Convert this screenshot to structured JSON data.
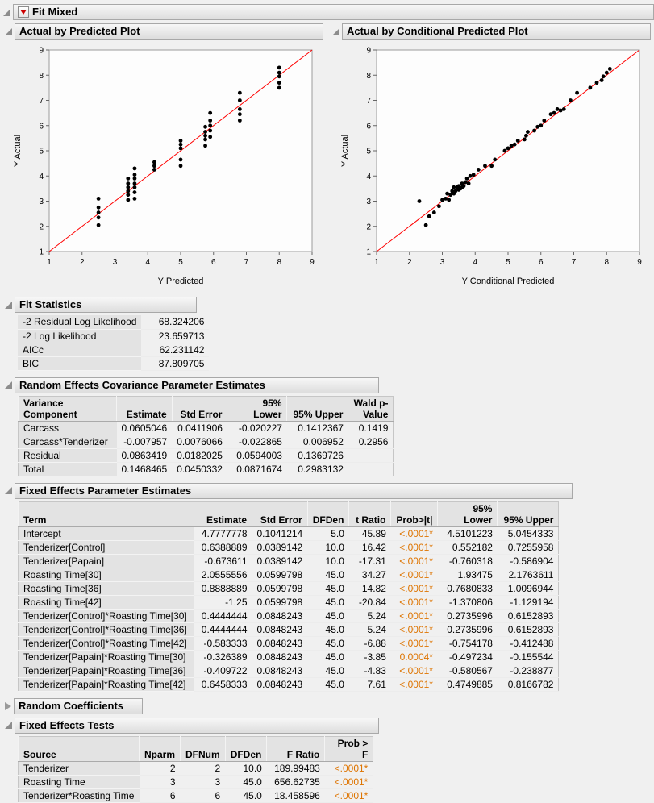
{
  "colors": {
    "significant": "#de7400",
    "accent_red": "#cc0000",
    "line": "#ff0000",
    "point": "#000000"
  },
  "root": {
    "title": "Fit Mixed"
  },
  "chart_data": [
    {
      "type": "scatter",
      "title": "Actual by Predicted Plot",
      "xlabel": "Y Predicted",
      "ylabel": "Y Actual",
      "xlim": [
        1,
        9
      ],
      "ylim": [
        1,
        9
      ],
      "ticks": [
        1,
        2,
        3,
        4,
        5,
        6,
        7,
        8,
        9
      ],
      "line": {
        "from": [
          1,
          1
        ],
        "to": [
          9,
          9
        ],
        "color": "#ff0000"
      },
      "points": [
        [
          2.5,
          2.05
        ],
        [
          2.5,
          2.35
        ],
        [
          2.5,
          2.55
        ],
        [
          2.5,
          2.75
        ],
        [
          2.5,
          3.1
        ],
        [
          3.4,
          3.05
        ],
        [
          3.4,
          3.25
        ],
        [
          3.4,
          3.4
        ],
        [
          3.4,
          3.55
        ],
        [
          3.4,
          3.7
        ],
        [
          3.4,
          3.9
        ],
        [
          3.6,
          3.1
        ],
        [
          3.6,
          3.35
        ],
        [
          3.6,
          3.55
        ],
        [
          3.6,
          3.7
        ],
        [
          3.6,
          3.9
        ],
        [
          3.6,
          4.05
        ],
        [
          3.6,
          4.3
        ],
        [
          4.2,
          4.25
        ],
        [
          4.2,
          4.4
        ],
        [
          4.2,
          4.55
        ],
        [
          5.0,
          4.4
        ],
        [
          5.0,
          4.65
        ],
        [
          5.0,
          5.1
        ],
        [
          5.0,
          5.25
        ],
        [
          5.0,
          5.4
        ],
        [
          5.75,
          5.2
        ],
        [
          5.75,
          5.45
        ],
        [
          5.75,
          5.6
        ],
        [
          5.75,
          5.75
        ],
        [
          5.75,
          5.95
        ],
        [
          5.9,
          5.55
        ],
        [
          5.9,
          5.8
        ],
        [
          5.9,
          6.0
        ],
        [
          5.9,
          6.2
        ],
        [
          5.9,
          6.5
        ],
        [
          6.8,
          6.2
        ],
        [
          6.8,
          6.45
        ],
        [
          6.8,
          6.65
        ],
        [
          6.8,
          7.0
        ],
        [
          6.8,
          7.3
        ],
        [
          8.0,
          7.5
        ],
        [
          8.0,
          7.7
        ],
        [
          8.0,
          7.95
        ],
        [
          8.0,
          8.1
        ],
        [
          8.0,
          8.3
        ]
      ]
    },
    {
      "type": "scatter",
      "title": "Actual by Conditional Predicted Plot",
      "xlabel": "Y Conditional Predicted",
      "ylabel": "Y Actual",
      "xlim": [
        1,
        9
      ],
      "ylim": [
        1,
        9
      ],
      "ticks": [
        1,
        2,
        3,
        4,
        5,
        6,
        7,
        8,
        9
      ],
      "line": {
        "from": [
          1,
          1
        ],
        "to": [
          9,
          9
        ],
        "color": "#ff0000"
      },
      "points": [
        [
          2.3,
          3.0
        ],
        [
          2.5,
          2.05
        ],
        [
          2.6,
          2.4
        ],
        [
          2.75,
          2.55
        ],
        [
          2.9,
          2.8
        ],
        [
          3.0,
          3.05
        ],
        [
          3.1,
          3.1
        ],
        [
          3.15,
          3.3
        ],
        [
          3.2,
          3.05
        ],
        [
          3.25,
          3.25
        ],
        [
          3.3,
          3.4
        ],
        [
          3.35,
          3.3
        ],
        [
          3.35,
          3.55
        ],
        [
          3.4,
          3.4
        ],
        [
          3.45,
          3.55
        ],
        [
          3.5,
          3.45
        ],
        [
          3.5,
          3.6
        ],
        [
          3.55,
          3.5
        ],
        [
          3.6,
          3.55
        ],
        [
          3.6,
          3.7
        ],
        [
          3.65,
          3.6
        ],
        [
          3.7,
          3.75
        ],
        [
          3.75,
          3.9
        ],
        [
          3.8,
          3.7
        ],
        [
          3.85,
          4.0
        ],
        [
          3.95,
          4.05
        ],
        [
          4.1,
          4.25
        ],
        [
          4.3,
          4.4
        ],
        [
          4.5,
          4.4
        ],
        [
          4.6,
          4.65
        ],
        [
          4.9,
          5.0
        ],
        [
          5.0,
          5.1
        ],
        [
          5.1,
          5.2
        ],
        [
          5.2,
          5.25
        ],
        [
          5.3,
          5.4
        ],
        [
          5.5,
          5.45
        ],
        [
          5.55,
          5.6
        ],
        [
          5.6,
          5.75
        ],
        [
          5.8,
          5.8
        ],
        [
          5.9,
          5.95
        ],
        [
          6.0,
          6.0
        ],
        [
          6.1,
          6.2
        ],
        [
          6.3,
          6.45
        ],
        [
          6.4,
          6.5
        ],
        [
          6.5,
          6.65
        ],
        [
          6.6,
          6.6
        ],
        [
          6.7,
          6.65
        ],
        [
          6.9,
          7.0
        ],
        [
          7.1,
          7.3
        ],
        [
          7.5,
          7.5
        ],
        [
          7.7,
          7.7
        ],
        [
          7.85,
          7.8
        ],
        [
          7.9,
          7.95
        ],
        [
          8.0,
          8.1
        ],
        [
          8.1,
          8.25
        ]
      ]
    }
  ],
  "fit_statistics": {
    "title": "Fit Statistics",
    "rows": [
      [
        "-2 Residual Log Likelihood",
        "68.324206"
      ],
      [
        "-2 Log Likelihood",
        "23.659713"
      ],
      [
        "AICc",
        "62.231142"
      ],
      [
        "BIC",
        "87.809705"
      ]
    ]
  },
  "random_effects": {
    "title": "Random Effects Covariance Parameter Estimates",
    "columns": [
      "Variance\nComponent",
      "Estimate",
      "Std Error",
      "95% Lower",
      "95% Upper",
      "Wald p-\nValue"
    ],
    "rows": [
      [
        "Carcass",
        "0.0605046",
        "0.0411906",
        "-0.020227",
        "0.1412367",
        "0.1419"
      ],
      [
        "Carcass*Tenderizer",
        "-0.007957",
        "0.0076066",
        "-0.022865",
        "0.006952",
        "0.2956"
      ],
      [
        "Residual",
        "0.0863419",
        "0.0182025",
        "0.0594003",
        "0.1369726",
        ""
      ],
      [
        "Total",
        "0.1468465",
        "0.0450332",
        "0.0871674",
        "0.2983132",
        ""
      ]
    ]
  },
  "fixed_effects": {
    "title": "Fixed Effects Parameter Estimates",
    "columns": [
      "Term",
      "Estimate",
      "Std Error",
      "DFDen",
      "t Ratio",
      "Prob>|t|",
      "95% Lower",
      "95% Upper"
    ],
    "rows": [
      [
        "Intercept",
        "4.7777778",
        "0.1041214",
        "5.0",
        "45.89",
        "<.0001*",
        "4.5101223",
        "5.0454333"
      ],
      [
        "Tenderizer[Control]",
        "0.6388889",
        "0.0389142",
        "10.0",
        "16.42",
        "<.0001*",
        "0.552182",
        "0.7255958"
      ],
      [
        "Tenderizer[Papain]",
        "-0.673611",
        "0.0389142",
        "10.0",
        "-17.31",
        "<.0001*",
        "-0.760318",
        "-0.586904"
      ],
      [
        "Roasting Time[30]",
        "2.0555556",
        "0.0599798",
        "45.0",
        "34.27",
        "<.0001*",
        "1.93475",
        "2.1763611"
      ],
      [
        "Roasting Time[36]",
        "0.8888889",
        "0.0599798",
        "45.0",
        "14.82",
        "<.0001*",
        "0.7680833",
        "1.0096944"
      ],
      [
        "Roasting Time[42]",
        "-1.25",
        "0.0599798",
        "45.0",
        "-20.84",
        "<.0001*",
        "-1.370806",
        "-1.129194"
      ],
      [
        "Tenderizer[Control]*Roasting Time[30]",
        "0.4444444",
        "0.0848243",
        "45.0",
        "5.24",
        "<.0001*",
        "0.2735996",
        "0.6152893"
      ],
      [
        "Tenderizer[Control]*Roasting Time[36]",
        "0.4444444",
        "0.0848243",
        "45.0",
        "5.24",
        "<.0001*",
        "0.2735996",
        "0.6152893"
      ],
      [
        "Tenderizer[Control]*Roasting Time[42]",
        "-0.583333",
        "0.0848243",
        "45.0",
        "-6.88",
        "<.0001*",
        "-0.754178",
        "-0.412488"
      ],
      [
        "Tenderizer[Papain]*Roasting Time[30]",
        "-0.326389",
        "0.0848243",
        "45.0",
        "-3.85",
        "0.0004*",
        "-0.497234",
        "-0.155544"
      ],
      [
        "Tenderizer[Papain]*Roasting Time[36]",
        "-0.409722",
        "0.0848243",
        "45.0",
        "-4.83",
        "<.0001*",
        "-0.580567",
        "-0.238877"
      ],
      [
        "Tenderizer[Papain]*Roasting Time[42]",
        "0.6458333",
        "0.0848243",
        "45.0",
        "7.61",
        "<.0001*",
        "0.4749885",
        "0.8166782"
      ]
    ]
  },
  "random_coefficients": {
    "title": "Random Coefficients"
  },
  "fixed_effects_tests": {
    "title": "Fixed Effects Tests",
    "columns": [
      "Source",
      "Nparm",
      "DFNum",
      "DFDen",
      "F Ratio",
      "Prob > F"
    ],
    "rows": [
      [
        "Tenderizer",
        "2",
        "2",
        "10.0",
        "189.99483",
        "<.0001*"
      ],
      [
        "Roasting Time",
        "3",
        "3",
        "45.0",
        "656.62735",
        "<.0001*"
      ],
      [
        "Tenderizer*Roasting Time",
        "6",
        "6",
        "45.0",
        "18.458596",
        "<.0001*"
      ]
    ]
  }
}
